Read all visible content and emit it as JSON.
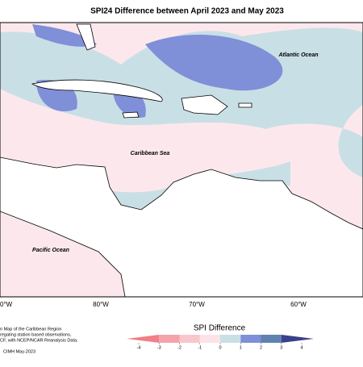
{
  "header": {
    "title": "SPI24 Difference between April 2023 and May 2023"
  },
  "map": {
    "labels": [
      "Atlantic Ocean",
      "Caribbean Sea",
      "Pacific Ocean"
    ],
    "longitudes": [
      "0°W",
      "80°W",
      "70°W",
      "60°W"
    ]
  },
  "notes": [
    "n Map of the Caribbean Region",
    "regating station based observations,",
    "CF, with NCEP/NCAR Reanalysis Data.",
    "CIMH May-2023"
  ],
  "colorbar": {
    "title": "SPI Difference",
    "ticks": [
      -4,
      -3,
      -2,
      -1,
      0,
      1,
      2,
      3,
      4
    ],
    "colors": [
      "#f07f86",
      "#f4a3ab",
      "#f8c6cc",
      "#fbe3e7",
      "#c9dfe6",
      "#7f8fd8",
      "#5f82b0",
      "#3b3f8c"
    ]
  }
}
